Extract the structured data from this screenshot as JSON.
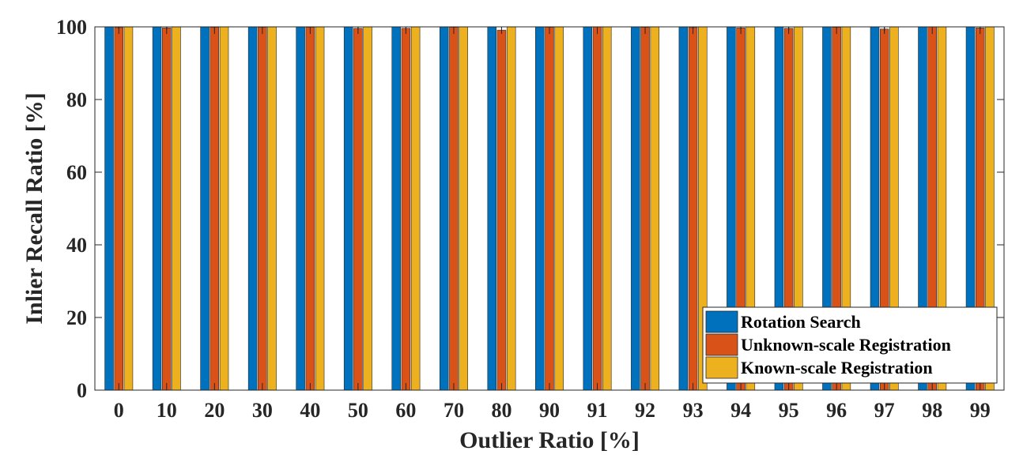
{
  "chart_data": {
    "type": "bar",
    "title": "",
    "xlabel": "Outlier Ratio [%]",
    "ylabel": "Inlier Recall Ratio [%]",
    "ylim": [
      0,
      100
    ],
    "yticks": [
      0,
      20,
      40,
      60,
      80,
      100
    ],
    "grid": false,
    "legend_position": "bottom-right",
    "categories": [
      "0",
      "10",
      "20",
      "30",
      "40",
      "50",
      "60",
      "70",
      "80",
      "90",
      "91",
      "92",
      "93",
      "94",
      "95",
      "96",
      "97",
      "98",
      "99"
    ],
    "series": [
      {
        "name": "Rotation Search",
        "color": "#0072BD",
        "values": [
          100,
          100,
          100,
          100,
          100,
          100,
          100,
          100,
          100,
          100,
          100,
          100,
          100,
          100,
          100,
          100,
          100,
          100,
          100
        ],
        "errors": [
          0,
          0,
          0,
          0,
          0,
          0,
          0,
          0,
          0,
          0,
          0,
          0,
          0,
          0,
          0,
          0,
          0,
          0,
          0
        ]
      },
      {
        "name": "Unknown-scale Registration",
        "color": "#D95319",
        "values": [
          99.8,
          99.7,
          99.9,
          99.9,
          99.9,
          99.6,
          99.6,
          99.9,
          99.1,
          99.9,
          100,
          99.9,
          99.8,
          99.7,
          99.6,
          99.9,
          99.4,
          100,
          99.7
        ],
        "errors": [
          0.3,
          0.4,
          0.2,
          0.2,
          0.2,
          0.5,
          0.5,
          0.2,
          0.9,
          0.2,
          0.1,
          0.2,
          0.3,
          0.4,
          0.5,
          0.2,
          0.6,
          0.1,
          0.4
        ]
      },
      {
        "name": "Known-scale Registration",
        "color": "#EDB120",
        "values": [
          100,
          100,
          100,
          100,
          100,
          100,
          100,
          100,
          100,
          100,
          100,
          100,
          100,
          100,
          100,
          100,
          100,
          100,
          100
        ],
        "errors": [
          0,
          0,
          0,
          0,
          0,
          0,
          0,
          0,
          0,
          0,
          0,
          0,
          0,
          0,
          0,
          0,
          0,
          0,
          0
        ]
      }
    ]
  }
}
